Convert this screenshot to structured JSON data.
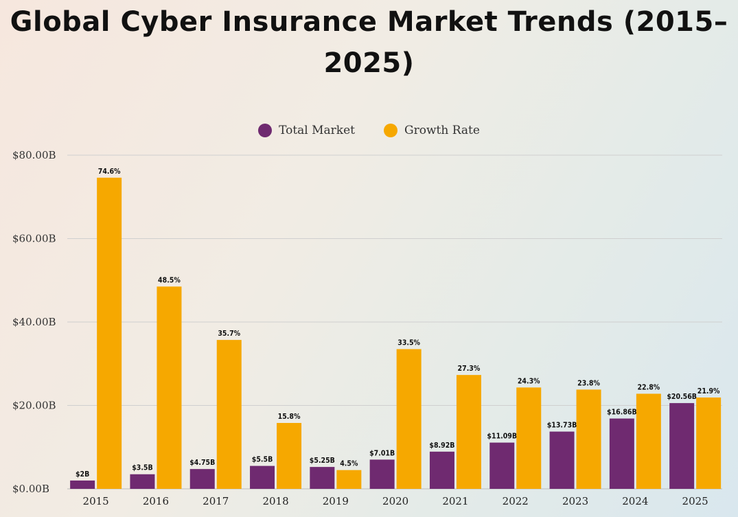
{
  "chart_data": {
    "type": "bar",
    "title": "Global Cyber Insurance Market Trends (2015–2025)",
    "categories": [
      "2015",
      "2016",
      "2017",
      "2018",
      "2019",
      "2020",
      "2021",
      "2022",
      "2023",
      "2024",
      "2025"
    ],
    "series": [
      {
        "name": "Total Market",
        "color": "#6f2a70",
        "values": [
          2,
          3.5,
          4.75,
          5.5,
          5.25,
          7.01,
          8.92,
          11.09,
          13.73,
          16.86,
          20.56
        ],
        "labels": [
          "$2B",
          "$3.5B",
          "$4.75B",
          "$5.5B",
          "$5.25B",
          "$7.01B",
          "$8.92B",
          "$11.09B",
          "$13.73B",
          "$16.86B",
          "$20.56B"
        ]
      },
      {
        "name": "Growth Rate",
        "color": "#f6a800",
        "values": [
          74.6,
          48.5,
          35.7,
          15.8,
          4.5,
          33.5,
          27.3,
          24.3,
          23.8,
          22.8,
          21.9
        ],
        "labels": [
          "74.6%",
          "48.5%",
          "35.7%",
          "15.8%",
          "4.5%",
          "33.5%",
          "27.3%",
          "24.3%",
          "23.8%",
          "22.8%",
          "21.9%"
        ]
      }
    ],
    "ylim": [
      0,
      80
    ],
    "yticks": [
      0,
      20,
      40,
      60,
      80
    ],
    "ytick_labels": [
      "$0.00B",
      "$20.00B",
      "$40.00B",
      "$60.00B",
      "$80.00B"
    ],
    "grid": true,
    "legend_position": "top-center",
    "gridline_color": "#cfcfcf"
  }
}
